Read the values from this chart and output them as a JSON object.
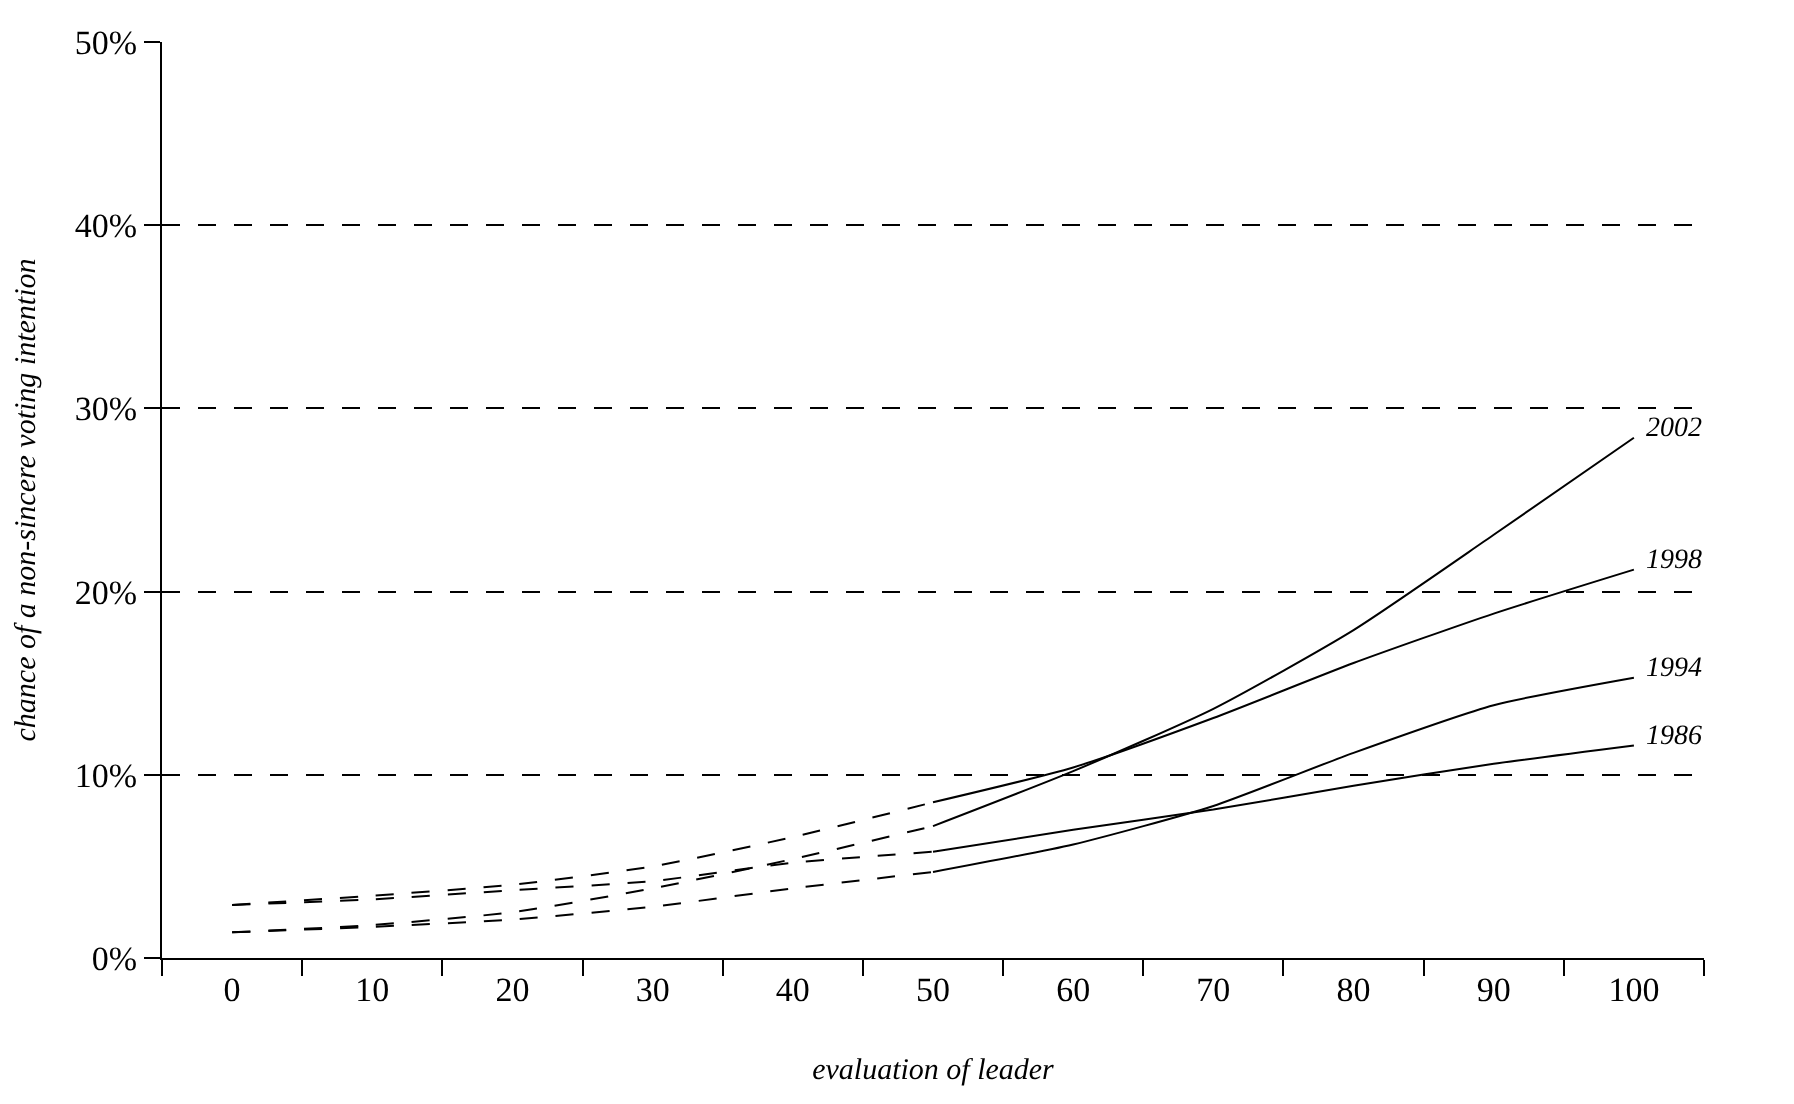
{
  "chart_data": {
    "type": "line",
    "xlabel": "evaluation of leader",
    "ylabel": "chance of a non-sincere voting intention",
    "series": [
      {
        "color": "#000000",
        "line_style": "dashed",
        "x": [
          0,
          10,
          20,
          30,
          40,
          50
        ],
        "values": [
          1.4,
          1.8,
          2.5,
          3.8,
          5.4,
          7.2
        ]
      },
      {
        "name": "2002",
        "color": "#000000",
        "line_style": "solid",
        "x": [
          50,
          60,
          70,
          80,
          90,
          100
        ],
        "values": [
          7.2,
          10.2,
          13.6,
          17.9,
          23.1,
          28.4
        ]
      },
      {
        "color": "#000000",
        "line_style": "dashed",
        "x": [
          0,
          10,
          20,
          30,
          40,
          50
        ],
        "values": [
          2.9,
          3.4,
          4.0,
          5.0,
          6.6,
          8.5
        ]
      },
      {
        "name": "1998",
        "color": "#000000",
        "line_style": "solid",
        "x": [
          50,
          60,
          70,
          80,
          90,
          100
        ],
        "values": [
          8.5,
          10.4,
          13.1,
          16.1,
          18.8,
          21.2
        ]
      },
      {
        "color": "#000000",
        "line_style": "dashed",
        "x": [
          0,
          10,
          20,
          30,
          40,
          50
        ],
        "values": [
          1.4,
          1.7,
          2.1,
          2.8,
          3.8,
          4.7
        ]
      },
      {
        "name": "1994",
        "color": "#000000",
        "line_style": "solid",
        "x": [
          50,
          60,
          70,
          80,
          90,
          100
        ],
        "values": [
          4.7,
          6.2,
          8.3,
          11.2,
          13.8,
          15.3
        ]
      },
      {
        "color": "#000000",
        "line_style": "dashed",
        "x": [
          0,
          10,
          20,
          30,
          40,
          50
        ],
        "values": [
          2.9,
          3.2,
          3.7,
          4.2,
          5.2,
          5.8
        ]
      },
      {
        "name": "1986",
        "color": "#000000",
        "line_style": "solid",
        "x": [
          50,
          60,
          70,
          80,
          90,
          100
        ],
        "values": [
          5.8,
          7.0,
          8.1,
          9.4,
          10.6,
          11.6
        ]
      }
    ],
    "xlim": [
      -5,
      105
    ],
    "xticks": [
      0,
      10,
      20,
      30,
      40,
      50,
      60,
      70,
      80,
      90,
      100
    ],
    "ylim": [
      0,
      50
    ],
    "yticks": [
      {
        "value": 0,
        "label": "0%"
      },
      {
        "value": 10,
        "label": "10%"
      },
      {
        "value": 20,
        "label": "20%"
      },
      {
        "value": 30,
        "label": "30%"
      },
      {
        "value": 40,
        "label": "40%"
      },
      {
        "value": 50,
        "label": "50%"
      }
    ],
    "grid": "y",
    "legend": false,
    "marker": "none"
  }
}
